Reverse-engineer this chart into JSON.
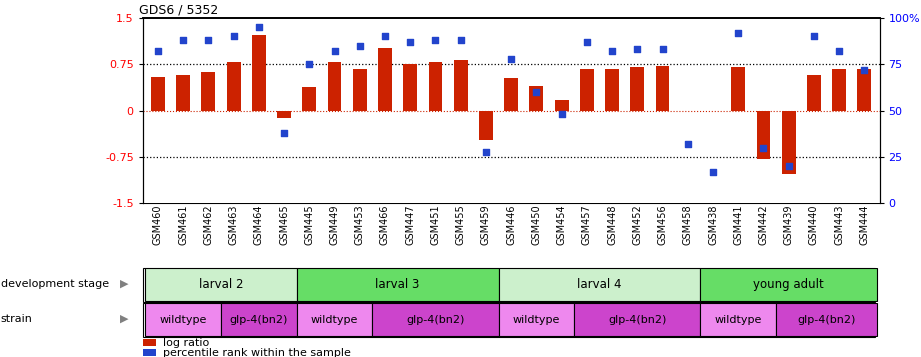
{
  "title": "GDS6 / 5352",
  "samples": [
    "GSM460",
    "GSM461",
    "GSM462",
    "GSM463",
    "GSM464",
    "GSM465",
    "GSM445",
    "GSM449",
    "GSM453",
    "GSM466",
    "GSM447",
    "GSM451",
    "GSM455",
    "GSM459",
    "GSM446",
    "GSM450",
    "GSM454",
    "GSM457",
    "GSM448",
    "GSM452",
    "GSM456",
    "GSM458",
    "GSM438",
    "GSM441",
    "GSM442",
    "GSM439",
    "GSM440",
    "GSM443",
    "GSM444"
  ],
  "log_ratio": [
    0.55,
    0.58,
    0.62,
    0.78,
    1.22,
    -0.12,
    0.38,
    0.78,
    0.68,
    1.02,
    0.75,
    0.78,
    0.82,
    -0.48,
    0.52,
    0.4,
    0.18,
    0.68,
    0.68,
    0.7,
    0.72,
    0.0,
    0.0,
    0.7,
    -0.78,
    -1.02,
    0.58,
    0.68,
    0.68
  ],
  "percentile": [
    82,
    88,
    88,
    90,
    95,
    38,
    75,
    82,
    85,
    90,
    87,
    88,
    88,
    28,
    78,
    60,
    48,
    87,
    82,
    83,
    83,
    32,
    17,
    92,
    30,
    20,
    90,
    82,
    72
  ],
  "dev_stages": [
    {
      "label": "larval 2",
      "start": 0,
      "end": 6,
      "color": "#ccf0cc"
    },
    {
      "label": "larval 3",
      "start": 6,
      "end": 14,
      "color": "#66dd66"
    },
    {
      "label": "larval 4",
      "start": 14,
      "end": 22,
      "color": "#ccf0cc"
    },
    {
      "label": "young adult",
      "start": 22,
      "end": 29,
      "color": "#66dd66"
    }
  ],
  "strains": [
    {
      "label": "wildtype",
      "start": 0,
      "end": 3,
      "color": "#ee88ee"
    },
    {
      "label": "glp-4(bn2)",
      "start": 3,
      "end": 6,
      "color": "#cc44cc"
    },
    {
      "label": "wildtype",
      "start": 6,
      "end": 9,
      "color": "#ee88ee"
    },
    {
      "label": "glp-4(bn2)",
      "start": 9,
      "end": 14,
      "color": "#cc44cc"
    },
    {
      "label": "wildtype",
      "start": 14,
      "end": 17,
      "color": "#ee88ee"
    },
    {
      "label": "glp-4(bn2)",
      "start": 17,
      "end": 22,
      "color": "#cc44cc"
    },
    {
      "label": "wildtype",
      "start": 22,
      "end": 25,
      "color": "#ee88ee"
    },
    {
      "label": "glp-4(bn2)",
      "start": 25,
      "end": 29,
      "color": "#cc44cc"
    }
  ],
  "bar_color": "#cc2200",
  "dot_color": "#2244cc",
  "ylim_left": [
    -1.5,
    1.5
  ],
  "ylim_right": [
    0,
    100
  ],
  "yticks_left": [
    -1.5,
    -0.75,
    0,
    0.75,
    1.5
  ],
  "yticks_right": [
    0,
    25,
    50,
    75,
    100
  ],
  "hlines_black": [
    -0.75,
    0.75
  ],
  "hline_red": 0.0
}
